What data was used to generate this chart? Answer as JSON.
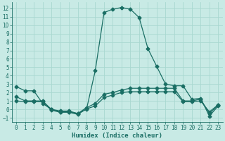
{
  "xlabel": "Humidex (Indice chaleur)",
  "bg_color": "#c8eae5",
  "grid_color": "#a8d8d0",
  "line_color": "#1a6e64",
  "xlim_min": -0.5,
  "xlim_max": 23.5,
  "ylim_min": -1.5,
  "ylim_max": 12.7,
  "xticks": [
    0,
    1,
    2,
    3,
    4,
    5,
    6,
    7,
    8,
    9,
    10,
    11,
    12,
    13,
    14,
    15,
    16,
    17,
    18,
    19,
    20,
    21,
    22,
    23
  ],
  "yticks": [
    -1,
    0,
    1,
    2,
    3,
    4,
    5,
    6,
    7,
    8,
    9,
    10,
    11,
    12
  ],
  "series1_x": [
    0,
    1,
    2,
    3,
    4,
    5,
    6,
    7,
    8,
    9,
    10,
    11,
    12,
    13,
    14,
    15,
    16,
    17,
    18,
    19,
    20,
    21,
    22,
    23
  ],
  "series1_y": [
    2.7,
    2.2,
    2.2,
    0.7,
    0.0,
    -0.3,
    -0.3,
    -0.5,
    0.0,
    4.6,
    11.5,
    11.9,
    12.1,
    11.9,
    10.9,
    7.2,
    5.1,
    3.0,
    2.8,
    2.8,
    1.2,
    1.3,
    -0.8,
    0.4
  ],
  "series2_x": [
    0,
    1,
    2,
    3,
    4,
    5,
    6,
    7,
    8,
    9,
    10,
    11,
    12,
    13,
    14,
    15,
    16,
    17,
    18,
    19,
    20,
    21,
    22,
    23
  ],
  "series2_y": [
    1.5,
    1.0,
    1.0,
    1.0,
    0.0,
    -0.2,
    -0.2,
    -0.5,
    0.2,
    0.7,
    1.8,
    2.0,
    2.3,
    2.5,
    2.5,
    2.5,
    2.5,
    2.5,
    2.5,
    1.0,
    1.0,
    1.2,
    -0.5,
    0.5
  ],
  "series3_x": [
    0,
    1,
    2,
    3,
    4,
    5,
    6,
    7,
    8,
    9,
    10,
    11,
    12,
    13,
    14,
    15,
    16,
    17,
    18,
    19,
    20,
    21,
    22,
    23
  ],
  "series3_y": [
    1.0,
    0.9,
    0.9,
    0.9,
    -0.1,
    -0.35,
    -0.35,
    -0.6,
    0.05,
    0.4,
    1.4,
    1.7,
    2.0,
    2.1,
    2.1,
    2.1,
    2.1,
    2.1,
    2.1,
    0.9,
    0.9,
    1.0,
    -0.3,
    0.55
  ]
}
